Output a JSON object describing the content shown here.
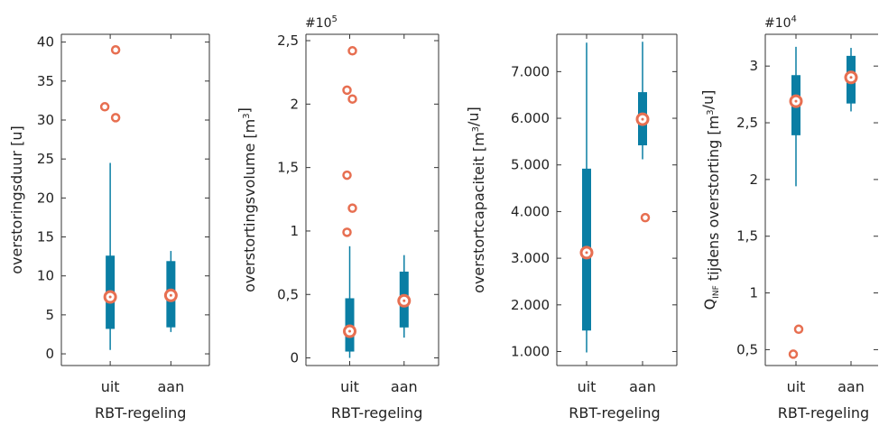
{
  "colors": {
    "box": "#0a7ea4",
    "median_marker": "#e76f51",
    "axis": "#333333"
  },
  "chart_data": [
    {
      "type": "box",
      "categories": [
        "uit",
        "aan"
      ],
      "xlabel": "RBT-regeling",
      "ylabel": "overstoringsduur [u]",
      "ylabel_parts": [
        {
          "t": "overstoringsduur [u]"
        }
      ],
      "exponent_label": "",
      "ylim": [
        -1.5,
        41
      ],
      "yticks": [
        0,
        5,
        10,
        15,
        20,
        25,
        30,
        35,
        40
      ],
      "ytick_labels": [
        "0",
        "5",
        "10",
        "15",
        "20",
        "25",
        "30",
        "35",
        "40"
      ],
      "boxes": [
        {
          "category": "uit",
          "whisker_low": 0.5,
          "q1": 3.2,
          "median": 7.3,
          "q3": 12.6,
          "whisker_high": 24.5,
          "outliers": [
            39.0,
            31.7,
            30.3
          ]
        },
        {
          "category": "aan",
          "whisker_low": 2.8,
          "q1": 3.4,
          "median": 7.5,
          "q3": 11.9,
          "whisker_high": 13.2,
          "outliers": []
        }
      ]
    },
    {
      "type": "box",
      "categories": [
        "uit",
        "aan"
      ],
      "xlabel": "RBT-regeling",
      "ylabel": "overstortingsvolume [m3]",
      "ylabel_parts": [
        {
          "t": "overstortingsvolume [m"
        },
        {
          "t": "3",
          "sup": true
        },
        {
          "t": "]"
        }
      ],
      "exponent_label": "#10",
      "exponent_power": "5",
      "ylim": [
        -0.06,
        2.55
      ],
      "yticks": [
        0,
        0.5,
        1,
        1.5,
        2,
        2.5
      ],
      "ytick_labels": [
        "0",
        "0,5",
        "1",
        "1,5",
        "2",
        "2,5"
      ],
      "boxes": [
        {
          "category": "uit",
          "whisker_low": 0.0,
          "q1": 0.05,
          "median": 0.21,
          "q3": 0.47,
          "whisker_high": 0.88,
          "outliers": [
            2.42,
            2.11,
            2.04,
            1.44,
            1.18,
            0.99
          ]
        },
        {
          "category": "aan",
          "whisker_low": 0.16,
          "q1": 0.24,
          "median": 0.45,
          "q3": 0.68,
          "whisker_high": 0.81,
          "outliers": []
        }
      ]
    },
    {
      "type": "box",
      "categories": [
        "uit",
        "aan"
      ],
      "xlabel": "RBT-regeling",
      "ylabel": "overstortcapaciteit [m3/u]",
      "ylabel_parts": [
        {
          "t": "overstortcapaciteit [m"
        },
        {
          "t": "3",
          "sup": true
        },
        {
          "t": "/u]"
        }
      ],
      "exponent_label": "",
      "ylim": [
        700,
        7800
      ],
      "yticks": [
        1000,
        2000,
        3000,
        4000,
        5000,
        6000,
        7000
      ],
      "ytick_labels": [
        "1.000",
        "2.000",
        "3.000",
        "4.000",
        "5.000",
        "6.000",
        "7.000"
      ],
      "boxes": [
        {
          "category": "uit",
          "whisker_low": 980,
          "q1": 1450,
          "median": 3120,
          "q3": 4920,
          "whisker_high": 7620,
          "outliers": []
        },
        {
          "category": "aan",
          "whisker_low": 5120,
          "q1": 5420,
          "median": 5980,
          "q3": 6560,
          "whisker_high": 7640,
          "outliers": [
            3870
          ]
        }
      ]
    },
    {
      "type": "box",
      "categories": [
        "uit",
        "aan"
      ],
      "xlabel": "RBT-regeling",
      "ylabel": "QINF tijdens overstorting [m3/u]",
      "ylabel_parts": [
        {
          "t": "Q"
        },
        {
          "t": "INF",
          "sub": true
        },
        {
          "t": " tijdens overstorting [m"
        },
        {
          "t": "3",
          "sup": true
        },
        {
          "t": "/u]"
        }
      ],
      "exponent_label": "#10",
      "exponent_power": "4",
      "ylim": [
        0.36,
        3.28
      ],
      "yticks": [
        0.5,
        1,
        1.5,
        2,
        2.5,
        3
      ],
      "ytick_labels": [
        "0,5",
        "1",
        "1,5",
        "2",
        "2,5",
        "3"
      ],
      "boxes": [
        {
          "category": "uit",
          "whisker_low": 1.94,
          "q1": 2.39,
          "median": 2.69,
          "q3": 2.92,
          "whisker_high": 3.17,
          "outliers": [
            0.68,
            0.46
          ]
        },
        {
          "category": "aan",
          "whisker_low": 2.6,
          "q1": 2.67,
          "median": 2.9,
          "q3": 3.09,
          "whisker_high": 3.16,
          "outliers": []
        }
      ]
    }
  ]
}
